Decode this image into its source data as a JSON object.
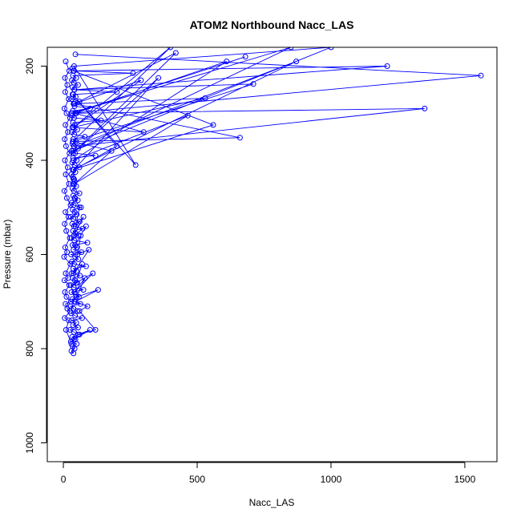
{
  "chart_data": {
    "type": "line",
    "title": "ATOM2 Northbound Nacc_LAS",
    "xlabel": "Nacc_LAS",
    "ylabel": "Pressure (mbar)",
    "xlim": [
      -60,
      1620
    ],
    "ylim": [
      1040,
      160
    ],
    "y_reversed": true,
    "x_ticks": [
      0,
      500,
      1000,
      1500
    ],
    "y_ticks": [
      200,
      400,
      600,
      800,
      1000
    ],
    "grid": false,
    "legend": "none",
    "color": "#0000ff",
    "series": [
      {
        "x": [
          38,
          30,
          42,
          35,
          50,
          28,
          45,
          33,
          60,
          40,
          25,
          55,
          36,
          48,
          31,
          70,
          44,
          29,
          52,
          38,
          27,
          64,
          41,
          33,
          58,
          46,
          30,
          75,
          39,
          28,
          52,
          43,
          35,
          62,
          31,
          49,
          37,
          85,
          40,
          32,
          56,
          44,
          29,
          68,
          38,
          52,
          34,
          90,
          41,
          30,
          57,
          45,
          36,
          72,
          40,
          33,
          61,
          38,
          28,
          50,
          42,
          35,
          66,
          39,
          31,
          54,
          44,
          37,
          60,
          40,
          34,
          48,
          36,
          42,
          38
        ],
        "y": [
          810,
          805,
          800,
          795,
          790,
          785,
          780,
          775,
          770,
          765,
          760,
          755,
          750,
          745,
          740,
          735,
          730,
          725,
          720,
          715,
          710,
          705,
          700,
          695,
          690,
          685,
          680,
          675,
          670,
          665,
          660,
          655,
          650,
          645,
          640,
          635,
          630,
          625,
          620,
          615,
          610,
          605,
          600,
          595,
          590,
          585,
          580,
          575,
          570,
          565,
          560,
          555,
          550,
          545,
          540,
          535,
          530,
          525,
          520,
          515,
          510,
          505,
          500,
          495,
          490,
          485,
          480,
          475,
          470,
          465,
          460,
          455,
          450,
          445,
          440
        ]
      },
      {
        "x": [
          40,
          35,
          30,
          45,
          38,
          60,
          42,
          33,
          50,
          36,
          120,
          44,
          31,
          55,
          39,
          34,
          47,
          37,
          80,
          41,
          32,
          52,
          38,
          43,
          36,
          140,
          40,
          33,
          49,
          35,
          100,
          42,
          38,
          60,
          31,
          46,
          37,
          200,
          41,
          34,
          55,
          39,
          32,
          48,
          36,
          260,
          40,
          33
        ],
        "y": [
          440,
          435,
          430,
          425,
          420,
          415,
          410,
          405,
          400,
          395,
          390,
          385,
          380,
          375,
          370,
          365,
          360,
          355,
          350,
          345,
          340,
          335,
          330,
          325,
          320,
          315,
          310,
          305,
          300,
          295,
          290,
          285,
          280,
          275,
          270,
          265,
          260,
          255,
          250,
          245,
          240,
          235,
          230,
          225,
          220,
          215,
          210,
          205
        ]
      },
      {
        "x": [
          45,
          1560,
          30,
          1350,
          40,
          870,
          35,
          560,
          38,
          1210,
          42,
          710,
          36,
          660,
          40,
          530,
          33,
          300,
          44,
          610,
          37,
          465,
          41,
          180,
          35,
          400,
          38,
          290,
          42,
          420,
          36,
          355,
          39,
          200,
          34,
          270,
          40,
          1000,
          37,
          850,
          32,
          680
        ],
        "y": [
          175,
          220,
          300,
          290,
          370,
          190,
          420,
          325,
          210,
          200,
          250,
          238,
          360,
          352,
          280,
          268,
          330,
          340,
          300,
          190,
          400,
          305,
          450,
          380,
          360,
          160,
          330,
          230,
          280,
          172,
          385,
          225,
          420,
          370,
          260,
          410,
          200,
          160,
          380,
          160,
          300,
          180
        ]
      },
      {
        "x": [
          30,
          10,
          20,
          5,
          25,
          15,
          8,
          28,
          12,
          6,
          22,
          4,
          18,
          9,
          26,
          3,
          14,
          7,
          24,
          11,
          5,
          19,
          8,
          27,
          13,
          4,
          21,
          9,
          16,
          6,
          23,
          10,
          5,
          17,
          8,
          25,
          12,
          4,
          20,
          7,
          15,
          6,
          22,
          9
        ],
        "y": [
          790,
          760,
          740,
          735,
          720,
          715,
          705,
          700,
          690,
          680,
          665,
          655,
          650,
          640,
          620,
          605,
          595,
          585,
          565,
          550,
          535,
          520,
          510,
          495,
          480,
          465,
          450,
          430,
          415,
          400,
          385,
          370,
          355,
          340,
          325,
          310,
          300,
          290,
          270,
          255,
          240,
          225,
          210,
          190
        ]
      },
      {
        "x": [
          40,
          100,
          55,
          120,
          60,
          90,
          45,
          130,
          50,
          80,
          42,
          110,
          48,
          70,
          38,
          95,
          52,
          65,
          44,
          85,
          40,
          75,
          46,
          60,
          42
        ],
        "y": [
          780,
          760,
          770,
          760,
          720,
          710,
          700,
          675,
          690,
          650,
          680,
          640,
          660,
          620,
          640,
          590,
          600,
          560,
          580,
          540,
          560,
          520,
          540,
          500,
          480
        ]
      }
    ]
  }
}
